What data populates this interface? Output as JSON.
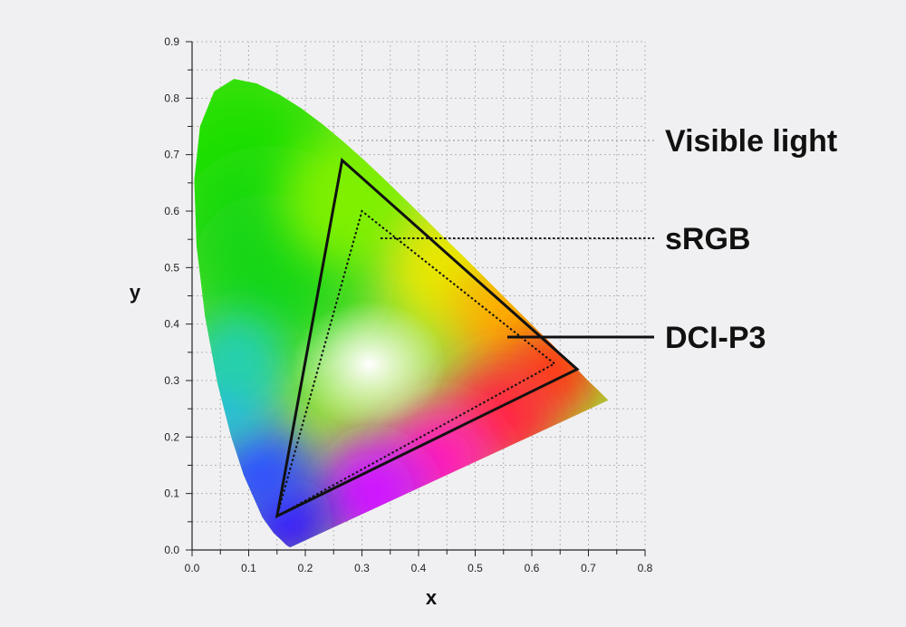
{
  "chart_data": {
    "type": "scatter",
    "title": "",
    "xlabel": "x",
    "ylabel": "y",
    "xlim": [
      0.0,
      0.8
    ],
    "ylim": [
      0.0,
      0.9
    ],
    "x_ticks": [
      "0.0",
      "0.1",
      "0.2",
      "0.3",
      "0.4",
      "0.5",
      "0.6",
      "0.7",
      "0.8"
    ],
    "y_ticks": [
      "0.0",
      "0.1",
      "0.2",
      "0.3",
      "0.4",
      "0.5",
      "0.6",
      "0.7",
      "0.8",
      "0.9"
    ],
    "grid": true,
    "visible_light_locus": [
      [
        0.174,
        0.005
      ],
      [
        0.172,
        0.005
      ],
      [
        0.166,
        0.009
      ],
      [
        0.157,
        0.018
      ],
      [
        0.144,
        0.03
      ],
      [
        0.124,
        0.058
      ],
      [
        0.091,
        0.133
      ],
      [
        0.069,
        0.201
      ],
      [
        0.045,
        0.295
      ],
      [
        0.023,
        0.413
      ],
      [
        0.008,
        0.538
      ],
      [
        0.004,
        0.655
      ],
      [
        0.014,
        0.75
      ],
      [
        0.039,
        0.812
      ],
      [
        0.074,
        0.834
      ],
      [
        0.114,
        0.826
      ],
      [
        0.155,
        0.806
      ],
      [
        0.193,
        0.782
      ],
      [
        0.23,
        0.754
      ],
      [
        0.266,
        0.724
      ],
      [
        0.302,
        0.692
      ],
      [
        0.337,
        0.659
      ],
      [
        0.373,
        0.624
      ],
      [
        0.409,
        0.589
      ],
      [
        0.444,
        0.554
      ],
      [
        0.479,
        0.52
      ],
      [
        0.512,
        0.487
      ],
      [
        0.547,
        0.452
      ],
      [
        0.579,
        0.42
      ],
      [
        0.608,
        0.391
      ],
      [
        0.633,
        0.367
      ],
      [
        0.658,
        0.341
      ],
      [
        0.679,
        0.321
      ],
      [
        0.699,
        0.3
      ],
      [
        0.715,
        0.285
      ],
      [
        0.735,
        0.265
      ]
    ],
    "series": [
      {
        "name": "Visible light",
        "style": "filled-locus"
      },
      {
        "name": "sRGB",
        "style": "dotted",
        "points": [
          [
            0.64,
            0.33
          ],
          [
            0.3,
            0.6
          ],
          [
            0.15,
            0.06
          ]
        ]
      },
      {
        "name": "DCI-P3",
        "style": "solid",
        "points": [
          [
            0.68,
            0.32
          ],
          [
            0.265,
            0.69
          ],
          [
            0.15,
            0.06
          ]
        ]
      }
    ],
    "white_point": [
      0.3127,
      0.329
    ],
    "colors": {
      "background": "#f0f0f2",
      "grid": "#b4b4b4",
      "axis": "#222222",
      "outline": "#111111"
    }
  }
}
